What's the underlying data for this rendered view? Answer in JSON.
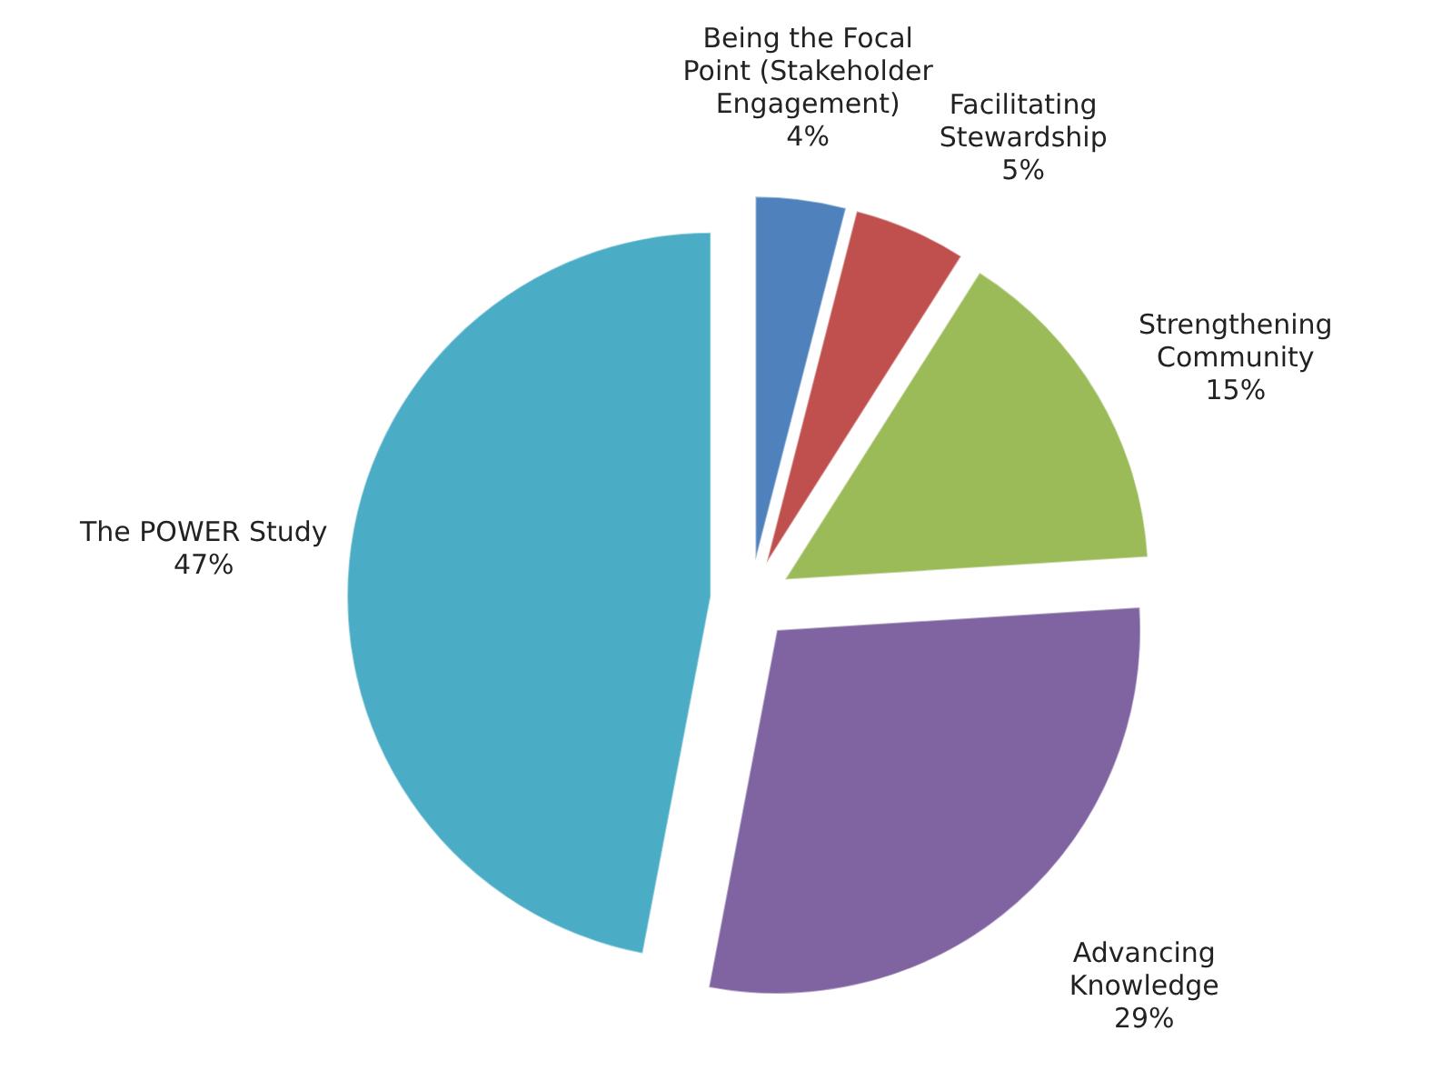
{
  "chart_data": {
    "type": "pie",
    "categories": [
      "Being the Focal Point (Stakeholder Engagement)",
      "Facilitating Stewardship",
      "Strengthening Community",
      "Advancing Knowledge",
      "The POWER Study"
    ],
    "values": [
      4,
      5,
      15,
      29,
      47
    ],
    "colors": [
      "#4f81bd",
      "#c0504d",
      "#9bbb59",
      "#8064a2",
      "#4bacc6"
    ],
    "value_labels": [
      "4%",
      "5%",
      "15%",
      "29%",
      "47%"
    ]
  }
}
